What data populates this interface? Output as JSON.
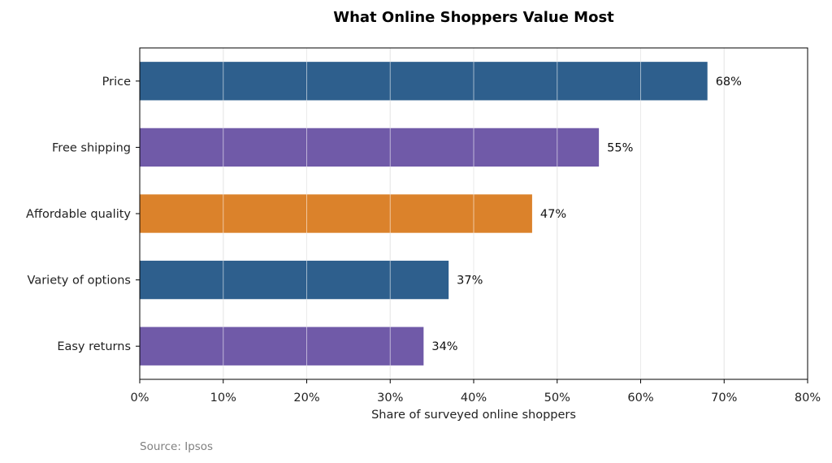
{
  "chart_data": {
    "type": "bar",
    "orientation": "horizontal",
    "title": "What Online Shoppers Value Most",
    "xlabel": "Share of surveyed online shoppers",
    "ylabel": "",
    "categories": [
      "Price",
      "Free shipping",
      "Affordable quality",
      "Variety of options",
      "Easy returns"
    ],
    "values": [
      68,
      55,
      47,
      37,
      34
    ],
    "value_labels": [
      "68%",
      "55%",
      "47%",
      "37%",
      "34%"
    ],
    "colors": [
      "#2e5f8d",
      "#705aa8",
      "#db822b",
      "#2e5f8d",
      "#705aa8"
    ],
    "xlim": [
      0,
      80
    ],
    "xticks": [
      0,
      10,
      20,
      30,
      40,
      50,
      60,
      70,
      80
    ],
    "xtick_labels": [
      "0%",
      "10%",
      "20%",
      "30%",
      "40%",
      "50%",
      "60%",
      "70%",
      "80%"
    ],
    "grid": "vertical",
    "source": "Source: Ipsos"
  }
}
